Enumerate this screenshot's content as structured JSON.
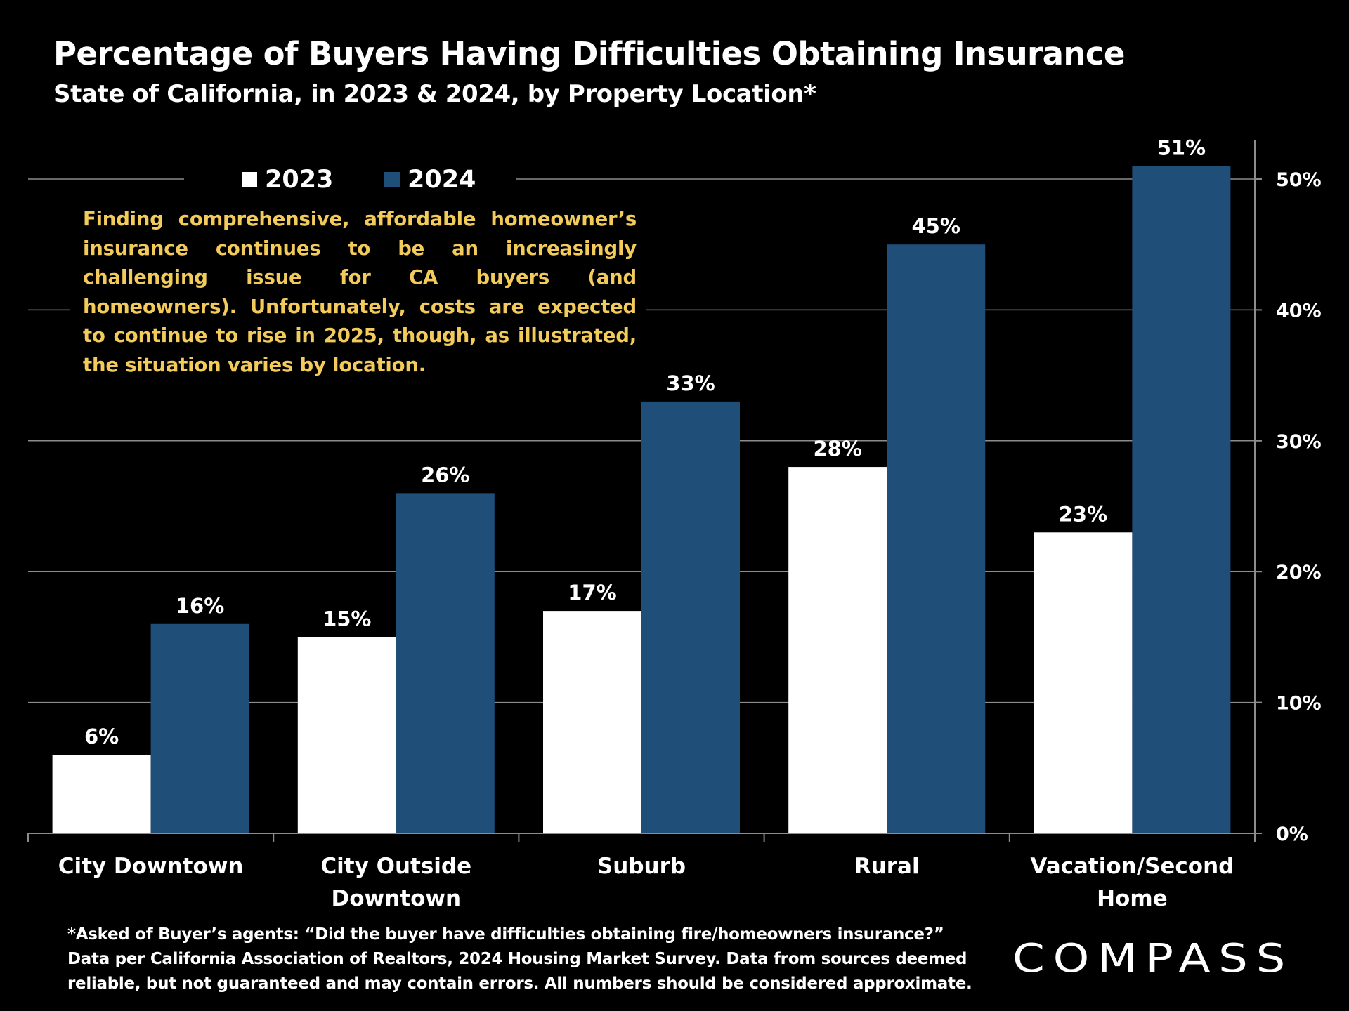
{
  "title": "Percentage of Buyers Having Difficulties Obtaining Insurance",
  "subtitle": "State of California, in 2023 & 2024, by Property Location*",
  "annotation": "Finding comprehensive, affordable homeowner’s insurance continues to be an increasingly challenging issue for CA buyers (and homeowners). Unfortunately, costs are expected to continue to rise in 2025, though, as illustrated, the situation varies by location.",
  "footnote": {
    "line1": "*Asked of Buyer’s agents:  “Did the buyer have difficulties obtaining fire/homeowners insurance?”",
    "line2": "Data per California Association of Realtors, 2024 Housing Market Survey. Data from sources deemed",
    "line3": "reliable, but not guaranteed and may contain errors. All numbers should be considered approximate."
  },
  "logo": {
    "text": "COMPASS"
  },
  "colors": {
    "background": "#000000",
    "series_2023": "#ffffff",
    "series_2024": "#1f4e79",
    "annotation": "#f2cb5a",
    "gridline": "#8c8c8c"
  },
  "chart_data": {
    "type": "bar",
    "categories": [
      [
        "City Downtown"
      ],
      [
        "City Outside",
        "Downtown"
      ],
      [
        "Suburb"
      ],
      [
        "Rural"
      ],
      [
        "Vacation/Second",
        "Home"
      ]
    ],
    "series": [
      {
        "name": "2023",
        "color": "#ffffff",
        "values": [
          6,
          15,
          17,
          28,
          23
        ],
        "labels": [
          "6%",
          "15%",
          "17%",
          "28%",
          "23%"
        ]
      },
      {
        "name": "2024",
        "color": "#1f4e79",
        "values": [
          16,
          26,
          33,
          45,
          51
        ],
        "labels": [
          "16%",
          "26%",
          "33%",
          "45%",
          "51%"
        ]
      }
    ],
    "ylim": [
      0,
      50
    ],
    "yticks": [
      0,
      10,
      20,
      30,
      40,
      50
    ],
    "ytick_labels": [
      "0%",
      "10%",
      "20%",
      "30%",
      "40%",
      "50%"
    ],
    "y_axis_side": "right",
    "grid": true,
    "legend_position": "top-left"
  }
}
